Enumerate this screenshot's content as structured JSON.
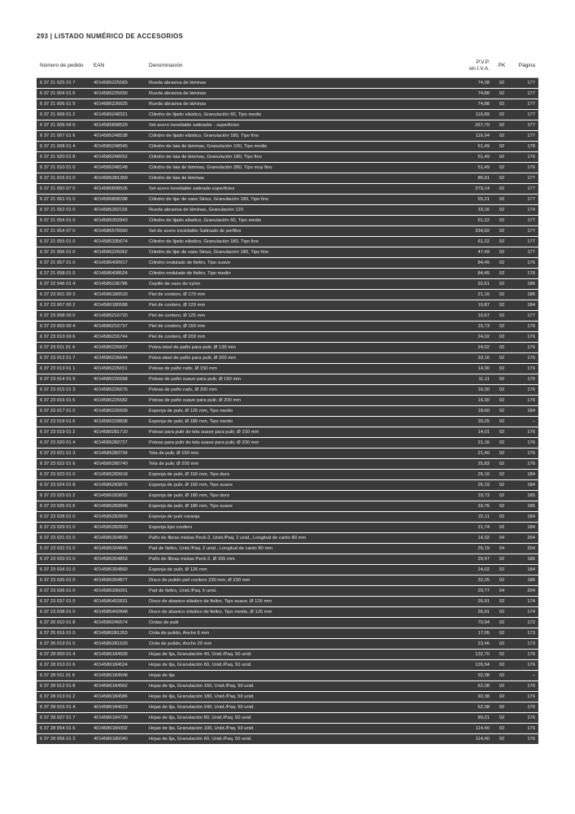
{
  "page_header": "293 | LISTADO NUMÉRICO DE ACCESORIOS",
  "columns": {
    "numero": "Número de pedido",
    "ean": "EAN",
    "denom": "Denominación",
    "pvp_line1": "P.V.P.",
    "pvp_line2": "sin I.V.A.",
    "pk": "PK",
    "pagina": "Página"
  },
  "rows": [
    {
      "num": "6 37 21 025 01 7",
      "ean": "4014586225583",
      "denom": "Rueda abrasiva de láminas",
      "pvp": "74,38",
      "pk": "02",
      "pagina": "177"
    },
    {
      "num": "6 37 21 004 01 6",
      "ean": "4014586225650",
      "denom": "Rueda abrasiva de láminas",
      "pvp": "74,88",
      "pk": "02",
      "pagina": "177"
    },
    {
      "num": "6 37 21 006 01 9",
      "ean": "4014586226625",
      "denom": "Rueda abrasiva de láminas",
      "pvp": "74,88",
      "pk": "02",
      "pagina": "177"
    },
    {
      "num": "6 37 21 008 01 2",
      "ean": "4014586248321",
      "denom": "Cilindro de lijado elástico, Granulación 60, Tipo medio",
      "pvp": "116,89",
      "pk": "02",
      "pagina": "177"
    },
    {
      "num": "6 37 21 006 04 0",
      "ean": "4014586808529",
      "denom": "Set acero inoxidable satinador - superficies",
      "pvp": "267,70",
      "pk": "02",
      "pagina": "177"
    },
    {
      "num": "6 37 21 007 01 6",
      "ean": "4014586248538",
      "denom": "Cilindro de lijado elástico, Granulación 180, Tipo fino",
      "pvp": "116,94",
      "pk": "02",
      "pagina": "177"
    },
    {
      "num": "6 37 21 008 01 4",
      "ean": "4014586248545",
      "denom": "Cilindro de laia de láminas, Granulación 100, Tipo medio",
      "pvp": "51,49",
      "pk": "02",
      "pagina": "178"
    },
    {
      "num": "6 37 21 020 01 8",
      "ean": "4014586248552",
      "denom": "Cilindro de laia de láminas, Granulación 180, Tipo fino",
      "pvp": "51,49",
      "pk": "02",
      "pagina": "176"
    },
    {
      "num": "6 37 21 010 01 0",
      "ean": "4014586248148",
      "denom": "Cilindro de laia de láminas, Granulación 280, Tipo muy fino",
      "pvp": "51,49",
      "pk": "02",
      "pagina": "176"
    },
    {
      "num": "6 37 21 015 01 0",
      "ean": "4014586281369",
      "denom": "Cilindro de laia de láminas",
      "pvp": "86,91",
      "pk": "02",
      "pagina": "177"
    },
    {
      "num": "6 37 21 050 07 0",
      "ean": "4014586808536",
      "denom": "Set acero inoxidable satinado superficies",
      "pvp": "279,14",
      "pk": "02",
      "pagina": "177"
    },
    {
      "num": "6 37 21 051 01 0",
      "ean": "4014586808288",
      "denom": "Cilindro de lijar de vaso Sinus, Granulación 180, Tipo fino",
      "pvp": "55,21",
      "pk": "02",
      "pagina": "177"
    },
    {
      "num": "6 37 21 052 01 0",
      "ean": "4014586302156",
      "denom": "Rueda abrasiva de láminas, Granulación 120",
      "pvp": "33,16",
      "pk": "02",
      "pagina": "174"
    },
    {
      "num": "6 37 21 054 01 0",
      "ean": "4014586302843",
      "denom": "Cilindro de lijado elástico, Granulación 60, Tipo medio",
      "pvp": "61,22",
      "pk": "02",
      "pagina": "177"
    },
    {
      "num": "6 37 21 054 07 0",
      "ean": "4014586576560",
      "denom": "Set de acero inoxidable Satinado de perfiles",
      "pvp": "234,92",
      "pk": "02",
      "pagina": "177"
    },
    {
      "num": "6 37 21 055 01 0",
      "ean": "4014586335674",
      "denom": "Cilindro de lijado elástico, Granulación 180, Tipo fino",
      "pvp": "61,22",
      "pk": "02",
      "pagina": "177"
    },
    {
      "num": "6 37 21 056 01 0",
      "ean": "4014586225062",
      "denom": "Cilindro de lijar de vaso Sinus, Granulación 180, Tipo fino",
      "pvp": "47,49",
      "pk": "02",
      "pagina": "177"
    },
    {
      "num": "6 37 21 057 01 0",
      "ean": "4014586400917",
      "denom": "Cilindro ondulado de fieltro, Tipo suave",
      "pvp": "84,45",
      "pk": "02",
      "pagina": "176"
    },
    {
      "num": "6 37 21 058 01 0",
      "ean": "4014586408524",
      "denom": "Cilindro ondulado de fieltro, Tipo medio",
      "pvp": "84,45",
      "pk": "02",
      "pagina": "176"
    },
    {
      "num": "6 37 22 046 01 4",
      "ean": "4014586236786",
      "denom": "Cepillo de vaso de nylon",
      "pvp": "92,61",
      "pk": "02",
      "pagina": "186"
    },
    {
      "num": "6 37 23 001 00 3",
      "ean": "4014586180533",
      "denom": "Piel de cordero, Ø 170 mm",
      "pvp": "21,16",
      "pk": "02",
      "pagina": "185"
    },
    {
      "num": "6 37 23 007 00 2",
      "ean": "4014586180588",
      "denom": "Piel de cordero, Ø 120 mm",
      "pvp": "10,87",
      "pk": "02",
      "pagina": "184"
    },
    {
      "num": "6 37 23 008 00 0",
      "ean": "4014586216720",
      "denom": "Piel de cordero, Ø 125 mm",
      "pvp": "10,67",
      "pk": "02",
      "pagina": "177"
    },
    {
      "num": "6 37 23 003 00 4",
      "ean": "4014586216737",
      "denom": "Piel de cordero, Ø 150 mm",
      "pvp": "15,73",
      "pk": "02",
      "pagina": "176"
    },
    {
      "num": "6 37 23 010 00 6",
      "ean": "4014586216744",
      "denom": "Piel de cordero, Ø 200 mm",
      "pvp": "24,02",
      "pk": "02",
      "pagina": "176"
    },
    {
      "num": "6 37 23 011 01 4",
      "ean": "4014586226637",
      "denom": "Polea steel de paño para pulir, Ø 130 mm",
      "pvp": "24,02",
      "pk": "02",
      "pagina": "176"
    },
    {
      "num": "6 37 23 012 01 7",
      "ean": "4014586226644",
      "denom": "Polea steel de paño para pulir, Ø 200 mm",
      "pvp": "33,16",
      "pk": "02",
      "pagina": "176"
    },
    {
      "num": "6 37 23 013 01 1",
      "ean": "4014586226651",
      "denom": "Poleas de paño rudo, Ø 150 mm",
      "pvp": "14,30",
      "pk": "02",
      "pagina": "176"
    },
    {
      "num": "6 37 23 014 01 9",
      "ean": "4014586226668",
      "denom": "Poleas de paño suave para pulir, Ø 150 mm",
      "pvp": "11,11",
      "pk": "02",
      "pagina": "176"
    },
    {
      "num": "6 37 23 015 01 3",
      "ean": "4014586226676",
      "denom": "Poleas de paño rudo, Ø 200 mm",
      "pvp": "16,30",
      "pk": "02",
      "pagina": "176"
    },
    {
      "num": "6 37 23 016 01 6",
      "ean": "4014586226682",
      "denom": "Poleas de paño suave para pulir, Ø 200 mm",
      "pvp": "16,30",
      "pk": "02",
      "pagina": "176"
    },
    {
      "num": "6 37 23 017 01 0",
      "ean": "4014586226609",
      "denom": "Esponja de pulir, Ø 126 mm, Tipo medio",
      "pvp": "18,60",
      "pk": "02",
      "pagina": "184"
    },
    {
      "num": "6 37 23 018 01 6",
      "ean": "4014586228838",
      "denom": "Esponja de pulir, Ø 180 mm, Tipo medio",
      "pvp": "30,25",
      "pk": "02",
      "pagina": "–"
    },
    {
      "num": "6 37 23 019 01 2",
      "ean": "4014586281710",
      "denom": "Poleas para pulir de tela suave para pulir, Ø 150 mm",
      "pvp": "14,01",
      "pk": "02",
      "pagina": "176"
    },
    {
      "num": "6 37 23 020 01 4",
      "ean": "4014586282727",
      "denom": "Poleas para pulir de tela suave para pulir, Ø 200 mm",
      "pvp": "21,16",
      "pk": "02",
      "pagina": "176"
    },
    {
      "num": "6 37 23 021 01 3",
      "ean": "4014586283734",
      "denom": "Tela de pulir, Ø 150 mm",
      "pvp": "21,40",
      "pk": "02",
      "pagina": "176"
    },
    {
      "num": "6 37 23 022 01 6",
      "ean": "4014586280740",
      "denom": "Tela de pulir, Ø 200 mm",
      "pvp": "25,83",
      "pk": "02",
      "pagina": "176"
    },
    {
      "num": "6 37 23 023 01 0",
      "ean": "4014586283918",
      "denom": "Esponja de pulir, Ø 150 mm, Tipo duro",
      "pvp": "26,16",
      "pk": "02",
      "pagina": "184"
    },
    {
      "num": "6 37 23 024 01 8",
      "ean": "4014586283876",
      "denom": "Esponja de pulir, Ø 150 mm, Tipo suave",
      "pvp": "26,19",
      "pk": "02",
      "pagina": "184"
    },
    {
      "num": "6 37 23 025 01 2",
      "ean": "4014586283832",
      "denom": "Esponja de pulir, Ø 180 mm, Tipo duro",
      "pvp": "33,73",
      "pk": "02",
      "pagina": "185"
    },
    {
      "num": "6 37 23 026 01 6",
      "ean": "4014586283848",
      "denom": "Esponja de pulir, Ø 180 mm, Tipo suave",
      "pvp": "33,76",
      "pk": "02",
      "pagina": "185"
    },
    {
      "num": "6 37 23 028 01 0",
      "ean": "4014586282809",
      "denom": "Esponja de pulir naranja",
      "pvp": "22,11",
      "pk": "02",
      "pagina": "184"
    },
    {
      "num": "6 37 23 029 01 0",
      "ean": "4014586282820",
      "denom": "Esponja tipo cordero",
      "pvp": "21,74",
      "pk": "02",
      "pagina": "184"
    },
    {
      "num": "6 37 23 031 01 0",
      "ean": "4014586304839",
      "denom": "Paño de fibras mixtas Peck-2, Unid./Paq. 2 unid., Longitud de canto 80 mm",
      "pvp": "14,32",
      "pk": "04",
      "pagina": "204"
    },
    {
      "num": "6 37 23 032 01 0",
      "ean": "4014586304846",
      "denom": "Pad de fieltro, Unid./Paq. 2 unid., Longitud de canto 80 mm",
      "pvp": "26,19",
      "pk": "04",
      "pagina": "204"
    },
    {
      "num": "6 37 23 033 01 0",
      "ean": "4014586304853",
      "denom": "Paño de fibras mixtas Peck-2, Ø 165 mm",
      "pvp": "20,47",
      "pk": "02",
      "pagina": "186"
    },
    {
      "num": "6 37 23 034 01 0",
      "ean": "4014586304860",
      "denom": "Esponja de pulir, Ø 126 mm",
      "pvp": "24,02",
      "pk": "02",
      "pagina": "184"
    },
    {
      "num": "6 37 23 035 01 0",
      "ean": "4014586304877",
      "denom": "Disco de pulido piel cordero 230 mm, Ø 230 mm",
      "pvp": "32,25",
      "pk": "02",
      "pagina": "186"
    },
    {
      "num": "6 37 23 036 01 0",
      "ean": "4014586336001",
      "denom": "Pad de fieltro, Unid./Paq. 5 unid.",
      "pvp": "20,77",
      "pk": "04",
      "pagina": "204"
    },
    {
      "num": "6 37 23 037 01 0",
      "ean": "4014586402831",
      "denom": "Disco de abanico elástico de fieltro, Tipo suave, Ø 126 mm",
      "pvp": "26,91",
      "pk": "02",
      "pagina": "174"
    },
    {
      "num": "6 37 23 038 01 0",
      "ean": "4014586402848",
      "denom": "Disco de abanico elástico de fieltro, Tipo medio, Ø 125 mm",
      "pvp": "26,91",
      "pk": "02",
      "pagina": "174"
    },
    {
      "num": "6 37 26 010 01 8",
      "ean": "4014586245574",
      "denom": "Cintas de pulir",
      "pvp": "70,94",
      "pk": "02",
      "pagina": "172"
    },
    {
      "num": "6 37 25 016 01 0",
      "ean": "4014586281353",
      "denom": "Cinta de pulido, Ancho 6 mm",
      "pvp": "17,05",
      "pk": "02",
      "pagina": "173"
    },
    {
      "num": "6 37 26 019 01 0",
      "ean": "4014586281520",
      "denom": "Cinta de pulido, Ancho 20 mm",
      "pvp": "23,46",
      "pk": "02",
      "pagina": "173"
    },
    {
      "num": "6 37 28 000 01 4",
      "ean": "4014586184500",
      "denom": "Hojas de lija, Granulación 40, Unid./Paq. 50 unid.",
      "pvp": "132,70",
      "pk": "02",
      "pagina": "176"
    },
    {
      "num": "6 37 28 010 01 6",
      "ean": "4014586184524",
      "denom": "Hojas de lija, Granulación 80, Unid./Paq. 50 unid.",
      "pvp": "126,94",
      "pk": "02",
      "pagina": "176"
    },
    {
      "num": "6 37 28 011 01 6",
      "ean": "4014586184548",
      "denom": "Hojas de lija",
      "pvp": "92,38",
      "pk": "02",
      "pagina": "–"
    },
    {
      "num": "6 37 28 012 01 8",
      "ean": "4014586184562",
      "denom": "Hojas de lija, Granulación 160, Unid./Paq. 50 unid.",
      "pvp": "62,38",
      "pk": "02",
      "pagina": "176"
    },
    {
      "num": "6 37 28 013 01 2",
      "ean": "4014586184586",
      "denom": "Hojas de lija, Granulación 180, Unid./Paq. 50 unid.",
      "pvp": "92,38",
      "pk": "02",
      "pagina": "176"
    },
    {
      "num": "6 37 28 015 01 4",
      "ean": "4014586184623",
      "denom": "Hojas de lija, Granulación 240, Unid./Paq. 50 unid.",
      "pvp": "62,38",
      "pk": "02",
      "pagina": "176"
    },
    {
      "num": "6 37 28 037 01 7",
      "ean": "4014586184739",
      "denom": "Hojas de lija, Granulación 80, Unid./Paq. 50 unid.",
      "pvp": "89,21",
      "pk": "02",
      "pagina": "176"
    },
    {
      "num": "6 37 28 054 01 6",
      "ean": "4014586184302",
      "denom": "Hojas de lija, Granulación 100, Unid./Paq. 50 unid.",
      "pvp": "114,40",
      "pk": "02",
      "pagina": "176"
    },
    {
      "num": "6 37 28 056 01 3",
      "ean": "4014586185040",
      "denom": "Hojas de lija, Granulación 60, Unid./Paq. 50 unid.",
      "pvp": "114,40",
      "pk": "02",
      "pagina": "176"
    }
  ]
}
